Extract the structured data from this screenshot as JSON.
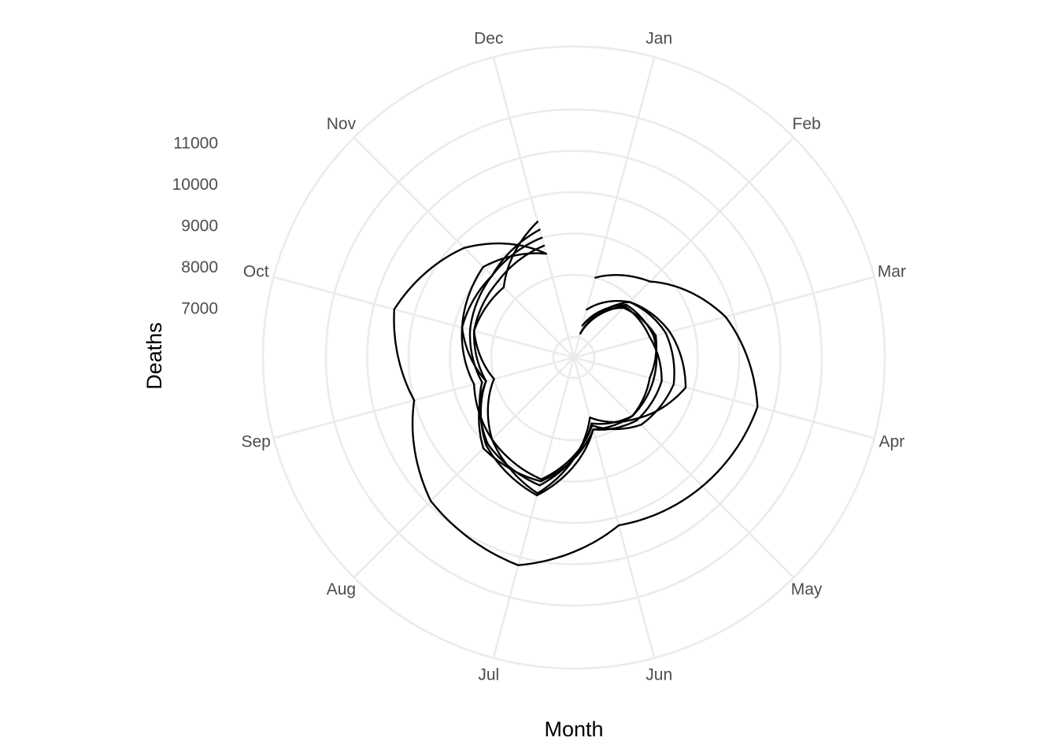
{
  "chart_data": {
    "type": "line",
    "coord": "polar",
    "title": "",
    "xlabel": "Month",
    "ylabel": "Deaths",
    "categories": [
      "Jan",
      "Feb",
      "Mar",
      "Apr",
      "May",
      "Jun",
      "Jul",
      "Aug",
      "Sep",
      "Oct",
      "Nov",
      "Dec"
    ],
    "y_ticks": [
      7000,
      8000,
      9000,
      10000,
      11000
    ],
    "ylim": [
      5000,
      12000
    ],
    "grid": true,
    "legend": "none",
    "line_color": "#000000",
    "grid_color": "#ebebeb",
    "series": [
      {
        "values": [
          5600,
          6900,
          7400,
          7800,
          7100,
          6500,
          8400,
          7800,
          7500,
          7800,
          8100,
          7600
        ]
      },
      {
        "values": [
          5600,
          6750,
          6900,
          7200,
          7150,
          6800,
          8100,
          8100,
          7200,
          7800,
          7800,
          8000
        ]
      },
      {
        "values": [
          5800,
          6800,
          7000,
          7000,
          7000,
          6650,
          8200,
          7950,
          7300,
          7600,
          7800,
          8200
        ]
      },
      {
        "values": [
          6200,
          6900,
          7300,
          7500,
          7300,
          6700,
          8050,
          7800,
          7000,
          7500,
          7600,
          7800
        ]
      },
      {
        "values": [
          5800,
          6700,
          7050,
          6900,
          7000,
          6800,
          8450,
          8000,
          7200,
          7500,
          7400,
          8400
        ]
      },
      {
        "values": [
          7000,
          7600,
          8800,
          9600,
          9400,
          9200,
          10200,
          9900,
          9000,
          9500,
          8750,
          7600
        ]
      }
    ]
  }
}
